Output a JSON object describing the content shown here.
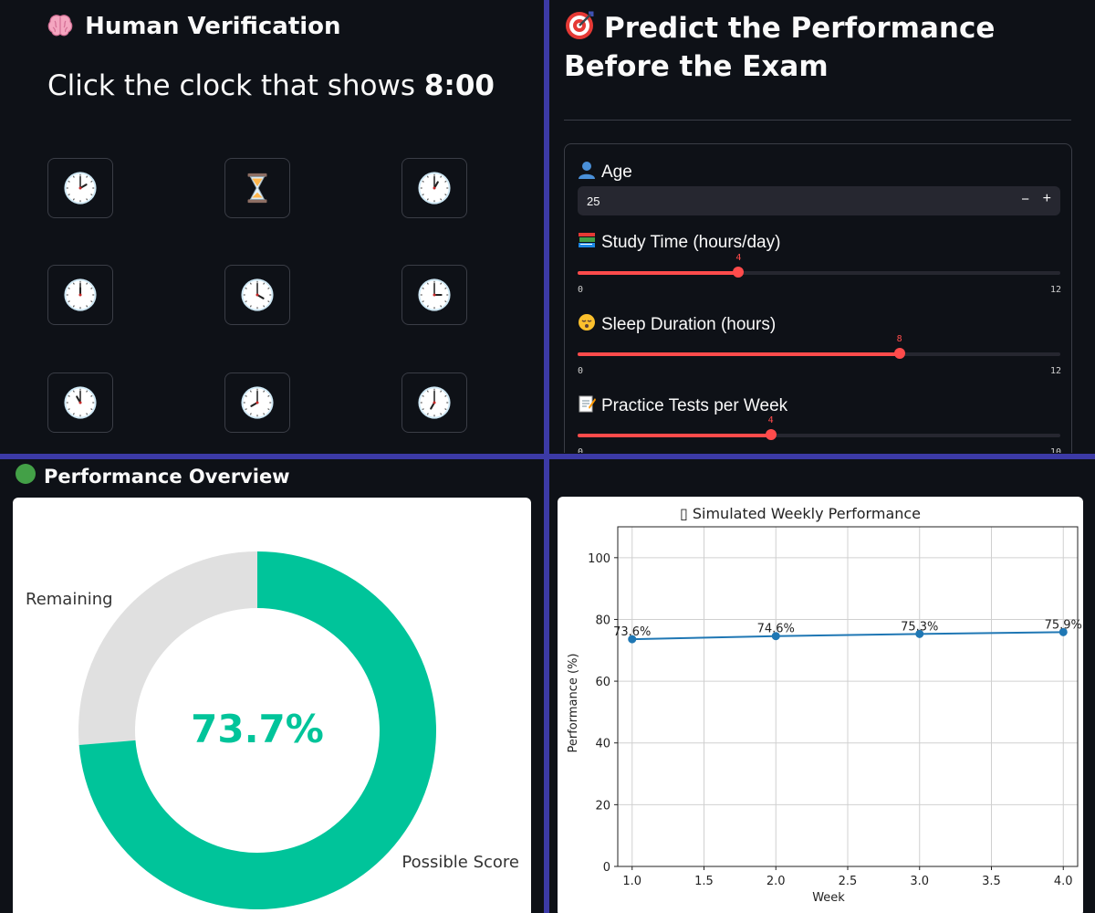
{
  "verification": {
    "title": "Human Verification",
    "title_icon": "brain-icon",
    "instruction_prefix": "Click the clock that shows ",
    "instruction_time": "8:00",
    "clocks": [
      {
        "icon": "clock-icon",
        "hour": 2,
        "minute": 0
      },
      {
        "icon": "hourglass-icon"
      },
      {
        "icon": "clock-icon",
        "hour": 1,
        "minute": 0
      },
      {
        "icon": "clock-icon",
        "hour": 12,
        "minute": 0
      },
      {
        "icon": "clock-icon",
        "hour": 4,
        "minute": 0
      },
      {
        "icon": "clock-icon",
        "hour": 3,
        "minute": 0
      },
      {
        "icon": "clock-icon",
        "hour": 11,
        "minute": 0
      },
      {
        "icon": "clock-icon",
        "hour": 8,
        "minute": 0
      },
      {
        "icon": "clock-icon",
        "hour": 7,
        "minute": 0
      }
    ]
  },
  "predict": {
    "title": "Predict the Performance Before the Exam",
    "title_icon": "target-icon",
    "age": {
      "label": "Age",
      "icon": "person-icon",
      "value": "25",
      "minus": "−",
      "plus": "+"
    },
    "study": {
      "label": "Study Time (hours/day)",
      "icon": "books-icon",
      "value": 4,
      "min": 0,
      "max": 12
    },
    "sleep": {
      "label": "Sleep Duration (hours)",
      "icon": "sleepy-face-icon",
      "value": 8,
      "min": 0,
      "max": 12
    },
    "practice": {
      "label": "Practice Tests per Week",
      "icon": "memo-icon",
      "value": 4,
      "min": 0,
      "max": 10
    }
  },
  "overview": {
    "title": "Performance Overview",
    "title_icon": "green-circle-icon",
    "percent_text": "73.7%",
    "score_fraction": 0.737,
    "score_label": "Possible Score",
    "remaining_label": "Remaining",
    "colors": {
      "score": "#00c49a",
      "remaining": "#e0e0e0"
    }
  },
  "chart_data": {
    "type": "line",
    "title": "▯ Simulated Weekly Performance",
    "xlabel": "Week",
    "ylabel": "Performance (%)",
    "x": [
      1.0,
      2.0,
      3.0,
      4.0
    ],
    "y": [
      73.6,
      74.6,
      75.3,
      75.9
    ],
    "point_labels": [
      "73.6%",
      "74.6%",
      "75.3%",
      "75.9%"
    ],
    "xlim": [
      0.9,
      4.1
    ],
    "ylim": [
      0,
      110
    ],
    "xticks": [
      "1.0",
      "1.5",
      "2.0",
      "2.5",
      "3.0",
      "3.5",
      "4.0"
    ],
    "yticks": [
      "0",
      "20",
      "40",
      "60",
      "80",
      "100"
    ],
    "grid": true,
    "color": "#1f77b4"
  }
}
